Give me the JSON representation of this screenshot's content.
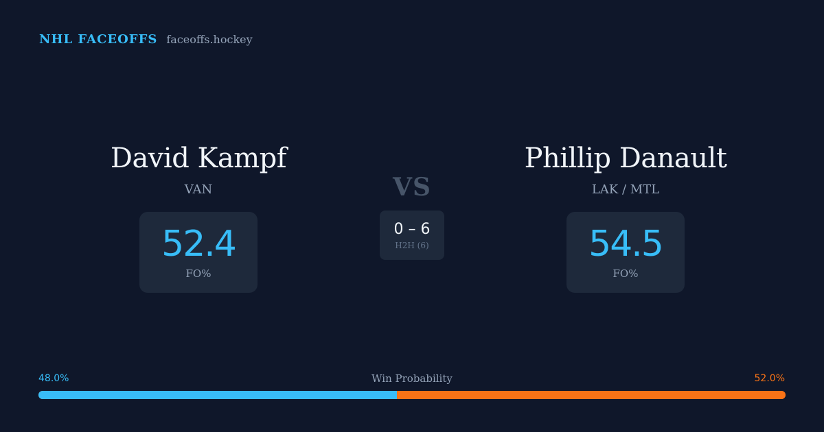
{
  "brand": {
    "name": "NHL FACEOFFS",
    "site": "faceoffs.hockey"
  },
  "players": [
    {
      "name": "David Kampf",
      "team": "VAN",
      "fo_pct": "52.4",
      "stat_label": "FO%"
    },
    {
      "name": "Phillip Danault",
      "team": "LAK / MTL",
      "fo_pct": "54.5",
      "stat_label": "FO%"
    }
  ],
  "vs_label": "VS",
  "h2h": {
    "score": "0 – 6",
    "label": "H2H (6)"
  },
  "win_probability": {
    "title": "Win Probability",
    "left_label": "48.0%",
    "right_label": "52.0%",
    "left_value": 48.0,
    "right_value": 52.0
  },
  "colors": {
    "background": "#0f172a",
    "left_accent": "#38bdf8",
    "right_accent": "#f97316",
    "card": "#1e293b"
  }
}
